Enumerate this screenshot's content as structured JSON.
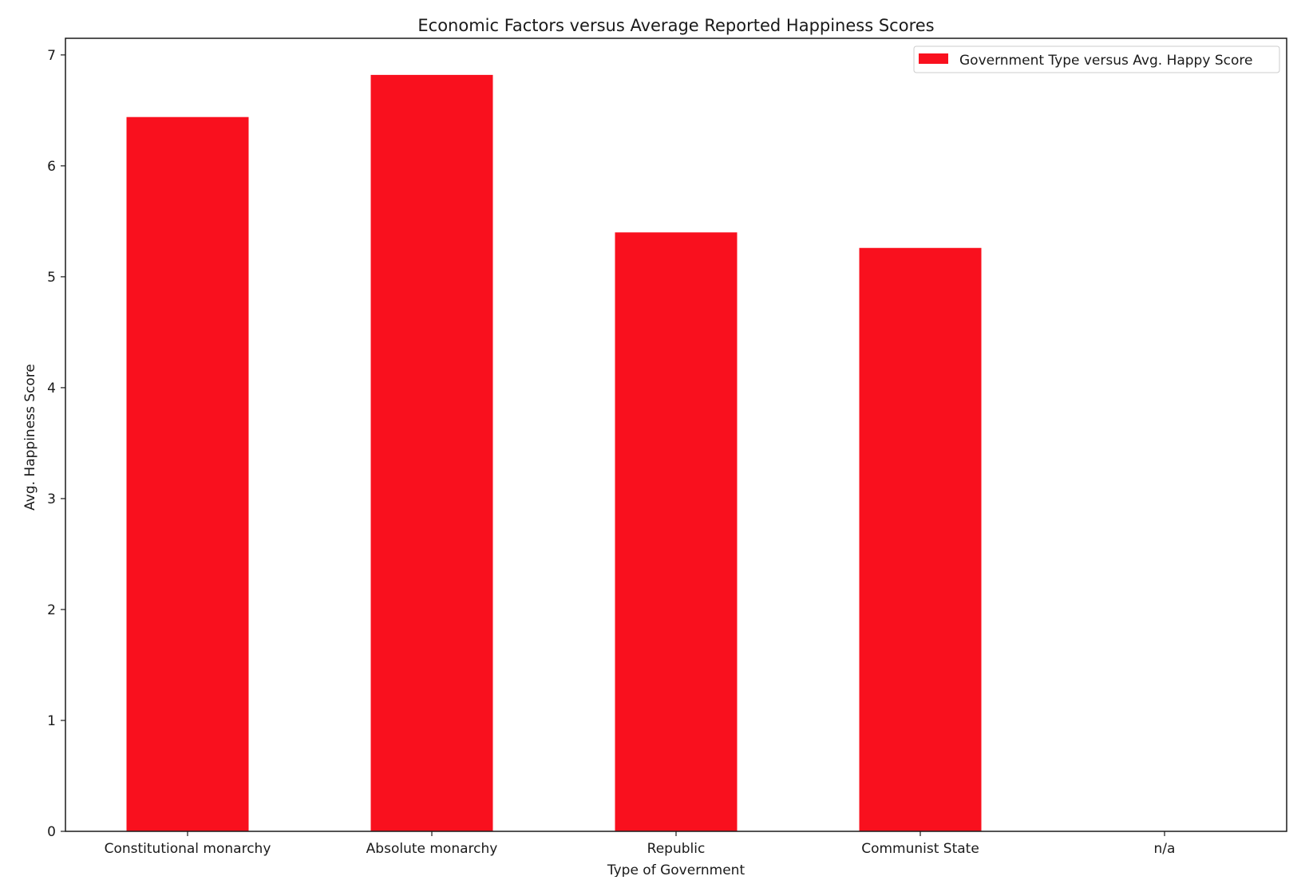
{
  "chart_data": {
    "type": "bar",
    "title": "Economic Factors versus Average Reported Happiness Scores",
    "xlabel": "Type of Government",
    "ylabel": "Avg. Happiness Score",
    "categories": [
      "Constitutional monarchy",
      "Absolute monarchy",
      "Republic",
      "Communist State",
      "n/a"
    ],
    "series": [
      {
        "name": "Government Type versus Avg. Happy Score",
        "values": [
          6.44,
          6.82,
          5.4,
          5.26,
          0
        ],
        "color": "#f9101e"
      }
    ],
    "ylim": [
      0,
      7.15
    ],
    "yticks": [
      "0",
      "1",
      "2",
      "3",
      "4",
      "5",
      "6",
      "7"
    ],
    "grid": false,
    "legend_position": "top-right"
  }
}
